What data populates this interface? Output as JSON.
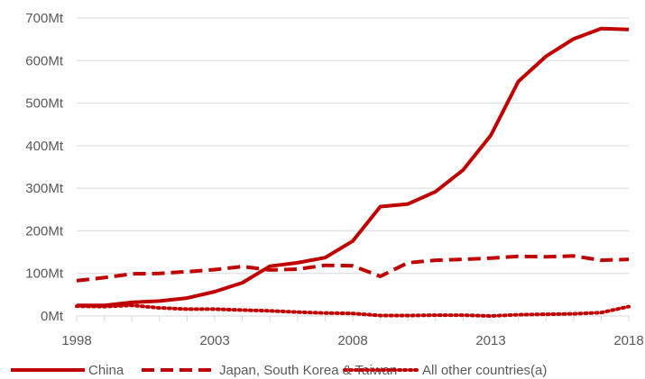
{
  "chart_data": {
    "type": "line",
    "title": "",
    "xlabel": "",
    "ylabel": "",
    "x": [
      1998,
      1999,
      2000,
      2001,
      2002,
      2003,
      2004,
      2005,
      2006,
      2007,
      2008,
      2009,
      2010,
      2011,
      2012,
      2013,
      2014,
      2015,
      2016,
      2017,
      2018
    ],
    "x_tick_labels": [
      "1998",
      "2003",
      "2008",
      "2013",
      "2018"
    ],
    "y_tick_labels": [
      "0Mt",
      "100Mt",
      "200Mt",
      "300Mt",
      "400Mt",
      "500Mt",
      "600Mt",
      "700Mt"
    ],
    "ylim": [
      0,
      700
    ],
    "grid": true,
    "legend_position": "bottom",
    "series": [
      {
        "name": "China",
        "style": "solid",
        "color": "#C00000",
        "values": [
          25,
          25,
          32,
          35,
          42,
          57,
          78,
          117,
          125,
          137,
          176,
          257,
          263,
          292,
          343,
          424,
          551,
          610,
          651,
          675,
          673
        ]
      },
      {
        "name": "Japan, South Korea & Taiwan",
        "style": "dashed",
        "color": "#C00000",
        "values": [
          83,
          90,
          99,
          100,
          104,
          109,
          116,
          108,
          110,
          119,
          118,
          93,
          125,
          131,
          133,
          136,
          140,
          139,
          141,
          131,
          133
        ]
      },
      {
        "name": "All other countries(a)",
        "style": "dotted",
        "color": "#C00000",
        "values": [
          23,
          22,
          25,
          19,
          16,
          16,
          14,
          12,
          9,
          7,
          6,
          1,
          1,
          2,
          2,
          0,
          3,
          4,
          5,
          8,
          22
        ]
      }
    ]
  }
}
